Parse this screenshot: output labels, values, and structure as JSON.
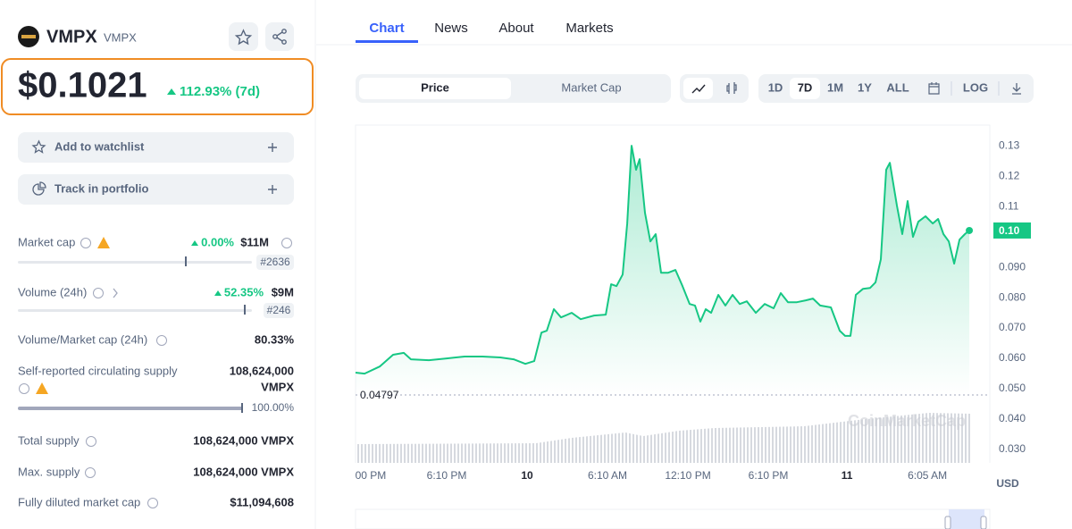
{
  "header": {
    "name": "VMPX",
    "ticker": "VMPX"
  },
  "price": {
    "value": "$0.1021",
    "change": "112.93% (7d)"
  },
  "actions": [
    "Add to watchlist",
    "Track in portfolio"
  ],
  "stats": {
    "market_cap": {
      "label": "Market cap",
      "change": "0.00%",
      "value": "$11M",
      "rank": "#2636"
    },
    "volume": {
      "label": "Volume (24h)",
      "change": "52.35%",
      "value": "$9M",
      "rank": "#246"
    },
    "volume_market_cap": {
      "label": "Volume/Market cap (24h)",
      "value": "80.33%"
    },
    "circulating_supply": {
      "label": "Self-reported circulating supply",
      "value": "108,624,000",
      "unit": "VMPX",
      "percent": "100.00%"
    },
    "total_supply": {
      "label": "Total supply",
      "value": "108,624,000 VMPX"
    },
    "max_supply": {
      "label": "Max. supply",
      "value": "108,624,000 VMPX"
    },
    "fully_diluted": {
      "label": "Fully diluted market cap",
      "value": "$11,094,608"
    }
  },
  "tabs": [
    "Chart",
    "News",
    "About",
    "Markets"
  ],
  "controls": {
    "modes": [
      "Price",
      "Market Cap"
    ],
    "ranges": [
      "1D",
      "7D",
      "1M",
      "1Y",
      "ALL"
    ],
    "log": "LOG"
  },
  "chart_data": {
    "type": "line",
    "color": "#16c784",
    "unit": "USD",
    "watermark": "CoinMarketCap",
    "x": [
      0,
      0.67,
      1.8,
      2.8,
      3.6,
      4.13,
      5.47,
      6.8,
      8.13,
      9.47,
      10.8,
      11.8,
      12.67,
      13.33,
      13.87,
      14.27,
      14.8,
      15.33,
      16.13,
      16.8,
      17.8,
      18.67,
      19.07,
      19.47,
      19.93,
      20.27,
      20.6,
      20.93,
      21.2,
      21.6,
      22,
      22.4,
      22.8,
      23.33,
      23.87,
      24.4,
      24.93,
      25.33,
      25.73,
      26.13,
      26.53,
      27.07,
      27.6,
      28.13,
      28.67,
      29.2,
      29.87,
      30.53,
      31.2,
      31.73,
      32.27,
      32.93,
      33.6,
      34.13,
      34.67,
      35.47,
      36.13,
      36.53,
      36.93,
      37.33,
      37.87,
      38.4,
      38.8,
      39.2,
      39.6,
      39.87,
      40.4,
      40.8,
      41.2,
      41.6,
      42,
      42.53,
      43.07,
      43.47,
      43.87,
      44.27,
      44.67,
      45.07,
      45.47,
      45.8
    ],
    "values": [
      0.0553,
      0.055,
      0.0573,
      0.0612,
      0.0618,
      0.0597,
      0.0594,
      0.06,
      0.0606,
      0.0606,
      0.0603,
      0.0597,
      0.0582,
      0.0591,
      0.0685,
      0.0691,
      0.0762,
      0.0735,
      0.075,
      0.0729,
      0.0741,
      0.0744,
      0.0844,
      0.0838,
      0.0876,
      0.1044,
      0.13,
      0.1221,
      0.1256,
      0.1079,
      0.0985,
      0.1009,
      0.0882,
      0.0882,
      0.0891,
      0.0838,
      0.0779,
      0.0774,
      0.0721,
      0.0762,
      0.075,
      0.0809,
      0.0774,
      0.0809,
      0.0779,
      0.0788,
      0.075,
      0.0779,
      0.0765,
      0.0815,
      0.0785,
      0.0785,
      0.0791,
      0.0797,
      0.0774,
      0.0768,
      0.0691,
      0.0674,
      0.0674,
      0.0809,
      0.0829,
      0.0832,
      0.085,
      0.0926,
      0.1221,
      0.1244,
      0.1103,
      0.1009,
      0.1118,
      0.1,
      0.105,
      0.1068,
      0.1044,
      0.1059,
      0.1009,
      0.0985,
      0.0912,
      0.0991,
      0.1009,
      0.1021
    ],
    "last_value_label": "0.10",
    "reference_line": 0.04797,
    "xlim": [
      0,
      47.33
    ],
    "xticks": [
      {
        "value": 1.13,
        "label": "00 PM"
      },
      {
        "value": 6.8,
        "label": "6:10 PM"
      },
      {
        "value": 12.8,
        "label": "10"
      },
      {
        "value": 18.8,
        "label": "6:10 AM"
      },
      {
        "value": 24.8,
        "label": "12:10 PM"
      },
      {
        "value": 30.8,
        "label": "6:10 PM"
      },
      {
        "value": 36.67,
        "label": "11"
      },
      {
        "value": 42.67,
        "label": "6:05 AM"
      }
    ],
    "ylim": [
      0.0256,
      0.1368
    ],
    "yticks": [
      0.13,
      0.12,
      0.11,
      {
        "value": 0.09,
        "label": "0.090"
      },
      {
        "value": 0.08,
        "label": "0.080"
      },
      {
        "value": 0.07,
        "label": "0.070"
      },
      {
        "value": 0.06,
        "label": "0.060"
      },
      {
        "value": 0.05,
        "label": "0.050"
      },
      {
        "value": 0.04,
        "label": "0.040"
      },
      {
        "value": 0.03,
        "label": "0.030"
      }
    ],
    "grid": false
  }
}
